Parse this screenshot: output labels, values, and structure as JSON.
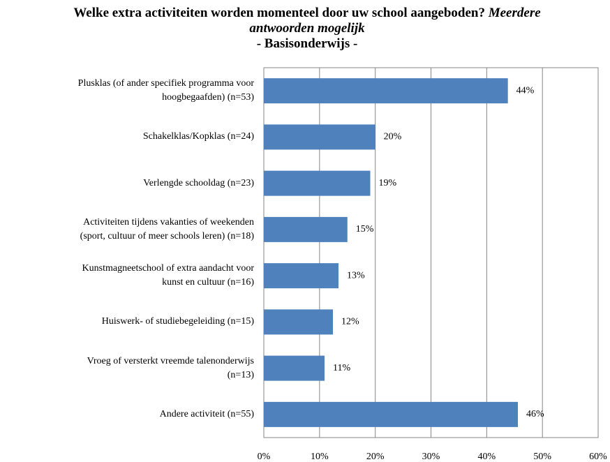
{
  "chart_data": {
    "type": "barh",
    "title": "Welke extra activiteiten worden momenteel door uw school aangeboden?",
    "title_note": "Meerdere antwoorden mogelijk",
    "subtitle": "- Basisonderwijs -",
    "categories": [
      "Plusklas (of ander specifiek programma voor\nhoogbegaafden) (n=53)",
      "Schakelklas/Kopklas (n=24)",
      "Verlengde schooldag (n=23)",
      "Activiteiten tijdens vakanties of weekenden\n(sport, cultuur of meer schools leren) (n=18)",
      "Kunstmagneetschool of extra aandacht voor\nkunst en cultuur  (n=16)",
      "Huiswerk- of studiebegeleiding (n=15)",
      "Vroeg of versterkt vreemde talenonderwijs\n(n=13)",
      "Andere activiteit (n=55)"
    ],
    "values": [
      43.8,
      20,
      19.1,
      15,
      13.4,
      12.4,
      10.9,
      45.6
    ],
    "value_labels": [
      "44%",
      "20%",
      "19%",
      "15%",
      "13%",
      "12%",
      "11%",
      "46%"
    ],
    "color": "#4f81bd",
    "xlim": [
      0,
      60
    ],
    "xticks": [
      {
        "value": 0,
        "label": "0%"
      },
      {
        "value": 10,
        "label": "10%"
      },
      {
        "value": 20,
        "label": "20%"
      },
      {
        "value": 30,
        "label": "30%"
      },
      {
        "value": 40,
        "label": "40%"
      },
      {
        "value": 50,
        "label": "50%"
      },
      {
        "value": 60,
        "label": "60%"
      }
    ],
    "grid": true
  }
}
